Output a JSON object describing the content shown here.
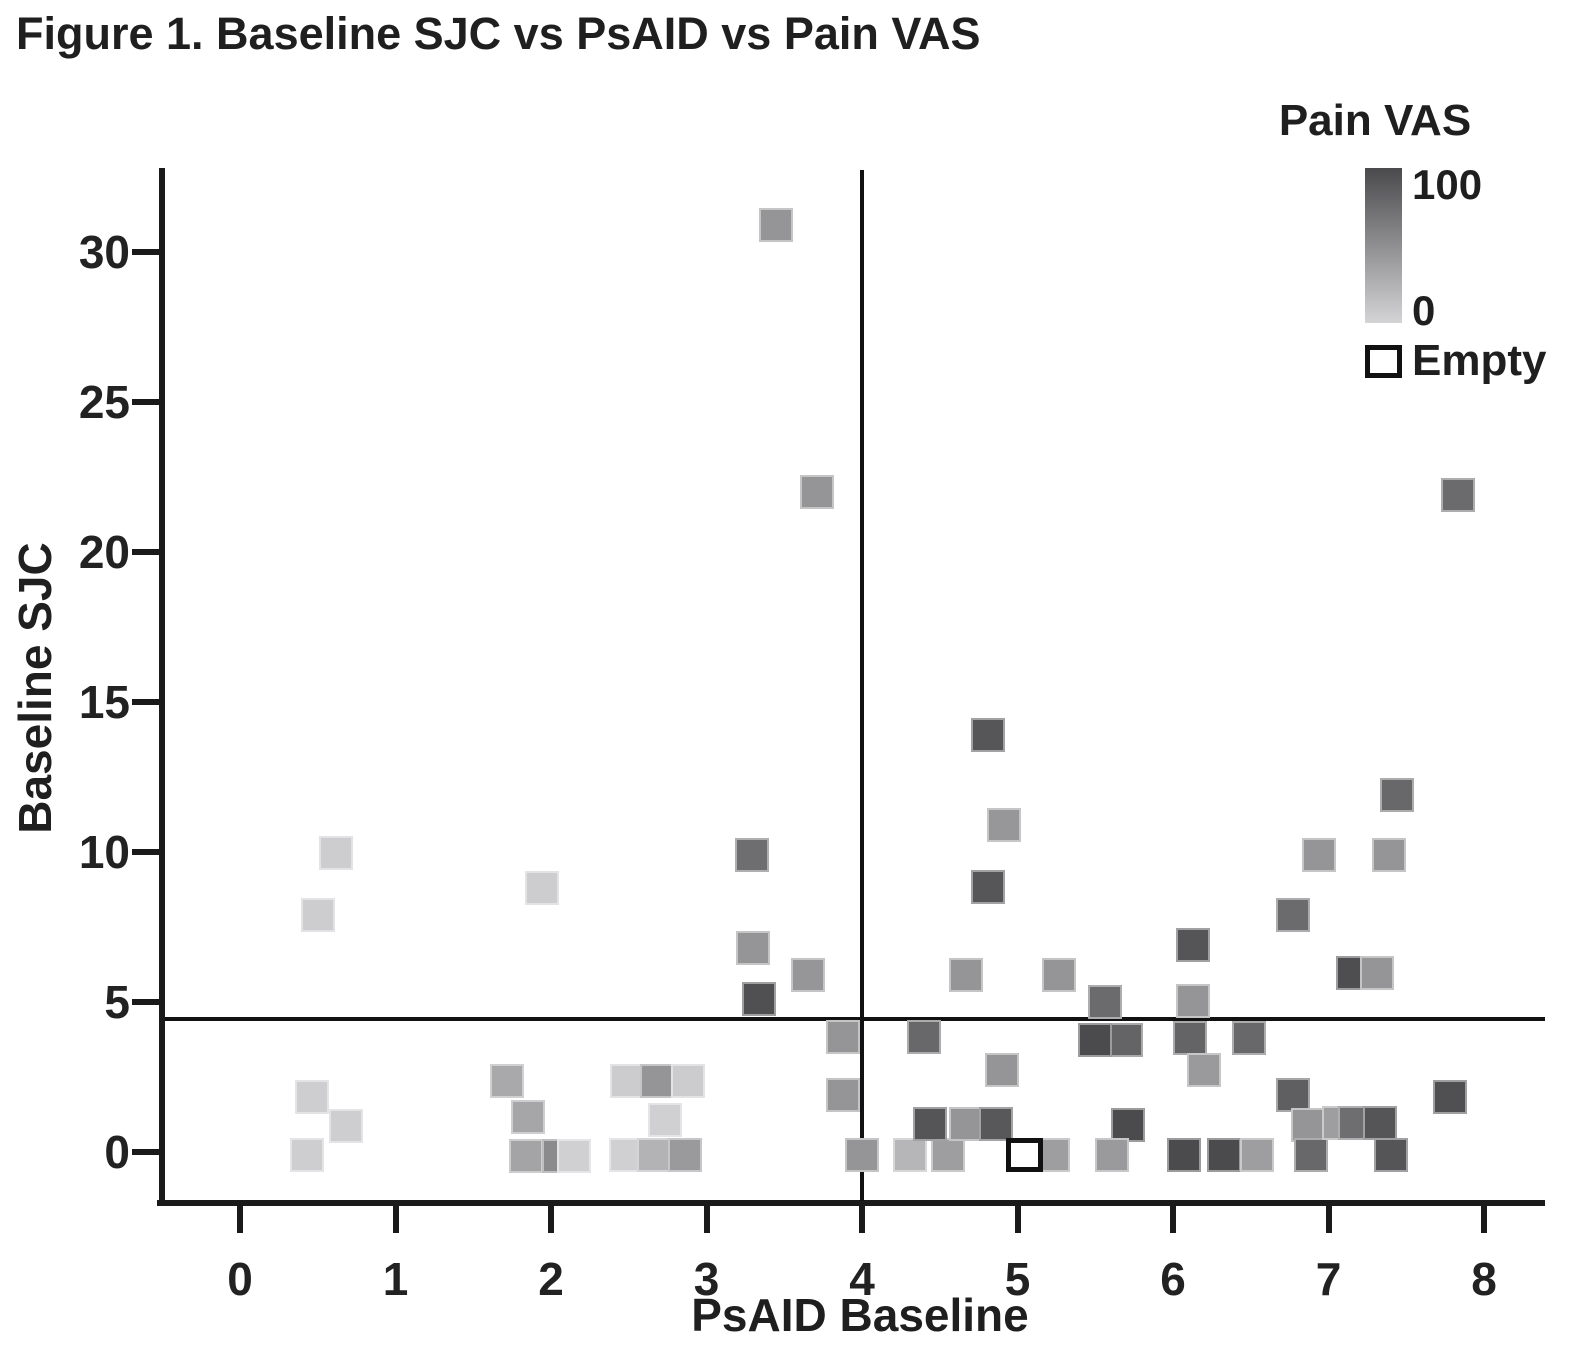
{
  "figure": {
    "title": "Figure 1. Baseline SJC vs PsAID vs Pain VAS"
  },
  "chart_data": {
    "type": "scatter",
    "title": "Figure 1. Baseline SJC vs PsAID vs Pain VAS",
    "xlabel": "PsAID Baseline",
    "ylabel": "Baseline SJC",
    "x_ticks": [
      0,
      1,
      2,
      3,
      4,
      5,
      6,
      7,
      8
    ],
    "y_ticks": [
      0,
      5,
      10,
      15,
      20,
      25,
      30
    ],
    "xlim": [
      -0.55,
      8.4
    ],
    "ylim": [
      -1.7,
      32.8
    ],
    "grid": false,
    "marker_shape": "square",
    "marker_size_px": 34,
    "reference_lines": {
      "vertical_x": 4,
      "horizontal_y": 4.45
    },
    "legend": {
      "title": "Pain VAS",
      "max_label": "100",
      "min_label": "0",
      "empty_label": "Empty",
      "position": "top-right",
      "gradient_high_color": "#4a4a4d",
      "gradient_low_color": "#d4d4d7"
    },
    "color_scale": {
      "variable": "Pain VAS",
      "min": 0,
      "max": 100,
      "low_gray": 212,
      "high_gray": 74
    },
    "points": [
      {
        "x": 3.45,
        "y": 30.9,
        "pain": 46
      },
      {
        "x": 3.71,
        "y": 22.0,
        "pain": 46
      },
      {
        "x": 7.83,
        "y": 21.9,
        "pain": 76
      },
      {
        "x": 0.62,
        "y": 9.97,
        "pain": 5
      },
      {
        "x": 0.5,
        "y": 7.9,
        "pain": 5
      },
      {
        "x": 1.94,
        "y": 8.8,
        "pain": 5
      },
      {
        "x": 3.29,
        "y": 9.9,
        "pain": 74
      },
      {
        "x": 3.3,
        "y": 6.8,
        "pain": 46
      },
      {
        "x": 3.65,
        "y": 5.9,
        "pain": 45
      },
      {
        "x": 3.34,
        "y": 5.1,
        "pain": 96
      },
      {
        "x": 4.81,
        "y": 13.9,
        "pain": 91
      },
      {
        "x": 4.91,
        "y": 10.9,
        "pain": 44
      },
      {
        "x": 4.81,
        "y": 8.85,
        "pain": 91
      },
      {
        "x": 4.67,
        "y": 5.9,
        "pain": 46
      },
      {
        "x": 5.27,
        "y": 5.9,
        "pain": 46
      },
      {
        "x": 7.44,
        "y": 11.9,
        "pain": 78
      },
      {
        "x": 6.94,
        "y": 9.9,
        "pain": 46
      },
      {
        "x": 7.39,
        "y": 9.9,
        "pain": 46
      },
      {
        "x": 6.77,
        "y": 7.9,
        "pain": 76
      },
      {
        "x": 6.13,
        "y": 6.9,
        "pain": 92
      },
      {
        "x": 5.56,
        "y": 5.0,
        "pain": 76
      },
      {
        "x": 6.13,
        "y": 5.03,
        "pain": 46
      },
      {
        "x": 7.16,
        "y": 5.97,
        "pain": 97
      },
      {
        "x": 7.31,
        "y": 5.97,
        "pain": 46
      },
      {
        "x": 3.88,
        "y": 3.83,
        "pain": 46
      },
      {
        "x": 4.4,
        "y": 3.83,
        "pain": 78
      },
      {
        "x": 5.7,
        "y": 3.73,
        "pain": 81
      },
      {
        "x": 5.5,
        "y": 3.73,
        "pain": 99
      },
      {
        "x": 6.11,
        "y": 3.8,
        "pain": 81
      },
      {
        "x": 6.49,
        "y": 3.8,
        "pain": 78
      },
      {
        "x": 4.9,
        "y": 2.73,
        "pain": 46
      },
      {
        "x": 6.2,
        "y": 2.73,
        "pain": 42
      },
      {
        "x": 3.88,
        "y": 1.9,
        "pain": 46
      },
      {
        "x": 6.77,
        "y": 1.9,
        "pain": 85
      },
      {
        "x": 7.78,
        "y": 1.83,
        "pain": 96
      },
      {
        "x": 0.46,
        "y": 1.83,
        "pain": 4
      },
      {
        "x": 0.68,
        "y": 0.87,
        "pain": 4
      },
      {
        "x": 0.43,
        "y": -0.1,
        "pain": 4
      },
      {
        "x": 1.72,
        "y": 2.37,
        "pain": 31
      },
      {
        "x": 1.85,
        "y": 1.17,
        "pain": 33
      },
      {
        "x": 1.84,
        "y": -0.13,
        "pain": 35
      },
      {
        "x": 2.05,
        "y": -0.13,
        "pain": 53
      },
      {
        "x": 2.15,
        "y": -0.13,
        "pain": 3
      },
      {
        "x": 2.49,
        "y": 2.37,
        "pain": 6
      },
      {
        "x": 2.68,
        "y": 2.37,
        "pain": 46
      },
      {
        "x": 2.88,
        "y": 2.37,
        "pain": 6
      },
      {
        "x": 2.73,
        "y": 1.07,
        "pain": 3
      },
      {
        "x": 2.48,
        "y": -0.1,
        "pain": 3
      },
      {
        "x": 2.66,
        "y": -0.1,
        "pain": 24
      },
      {
        "x": 2.86,
        "y": -0.1,
        "pain": 42
      },
      {
        "x": 4.0,
        "y": -0.1,
        "pain": 46
      },
      {
        "x": 4.31,
        "y": -0.1,
        "pain": 22
      },
      {
        "x": 4.55,
        "y": -0.1,
        "pain": 39
      },
      {
        "x": 4.44,
        "y": 0.93,
        "pain": 92
      },
      {
        "x": 4.67,
        "y": 0.93,
        "pain": 46
      },
      {
        "x": 4.86,
        "y": 0.93,
        "pain": 90
      },
      {
        "x": 5.23,
        "y": -0.1,
        "pain": 39
      },
      {
        "x": 5.71,
        "y": 0.9,
        "pain": 99
      },
      {
        "x": 6.87,
        "y": 0.9,
        "pain": 46
      },
      {
        "x": 5.61,
        "y": -0.1,
        "pain": 42
      },
      {
        "x": 6.07,
        "y": -0.1,
        "pain": 99
      },
      {
        "x": 6.33,
        "y": -0.1,
        "pain": 99
      },
      {
        "x": 6.54,
        "y": -0.1,
        "pain": 39
      },
      {
        "x": 6.89,
        "y": -0.1,
        "pain": 78
      },
      {
        "x": 7.07,
        "y": 0.97,
        "pain": 39
      },
      {
        "x": 7.17,
        "y": 0.97,
        "pain": 74
      },
      {
        "x": 7.33,
        "y": 0.97,
        "pain": 92
      },
      {
        "x": 7.4,
        "y": -0.1,
        "pain": 92
      },
      {
        "x": 5.04,
        "y": -0.1,
        "pain": null,
        "empty": true
      }
    ]
  }
}
